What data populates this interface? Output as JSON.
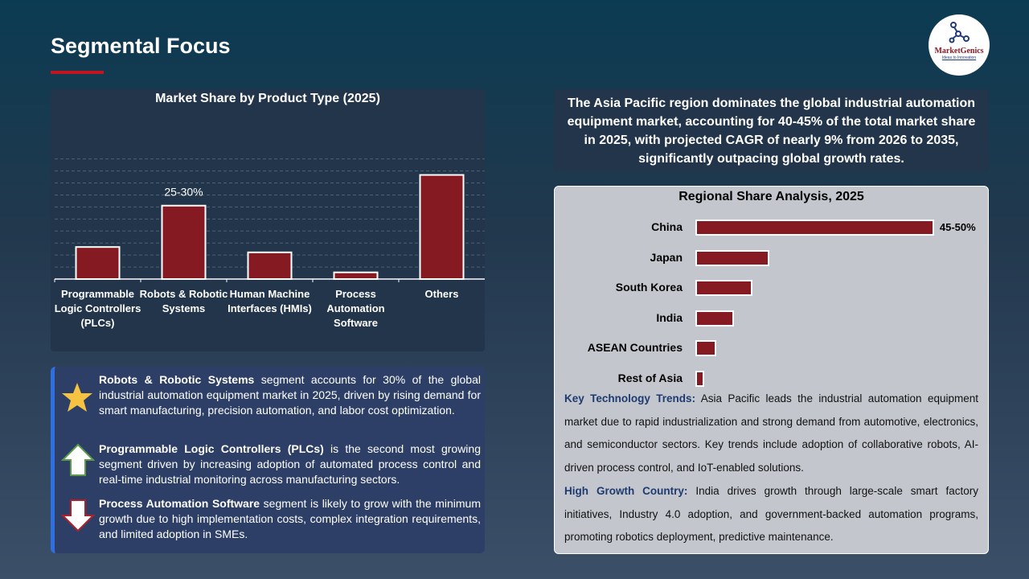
{
  "header": {
    "title": "Segmental Focus",
    "logo": {
      "name": "MarketGenics",
      "tagline": "Ideas to Innovation",
      "icon": "molecule-icon"
    }
  },
  "colors": {
    "bar": "#861a22",
    "accent": "#c3151f"
  },
  "chart_data": [
    {
      "type": "bar",
      "title": "Market Share by Product Type (2025)",
      "categories": [
        "Programmable Logic Controllers (PLCs)",
        "Robots & Robotic Systems",
        "Human Machine Interfaces (HMIs)",
        "Process Automation Software",
        "Others"
      ],
      "values": [
        12,
        27.5,
        10,
        2.5,
        39
      ],
      "data_labels": [
        "",
        "25-30%",
        "",
        "",
        ""
      ],
      "ylim": [
        0,
        47
      ],
      "grid": true,
      "unit": "%"
    },
    {
      "type": "bar",
      "orientation": "horizontal",
      "title": "Regional Share Analysis, 2025",
      "categories": [
        "China",
        "Japan",
        "South Korea",
        "India",
        "ASEAN Countries",
        "Rest of Asia"
      ],
      "values": [
        47.5,
        14.7,
        11.4,
        7.7,
        4.2,
        1.8
      ],
      "data_labels": [
        "45-50%",
        "",
        "",
        "",
        "",
        ""
      ],
      "unit": "%"
    }
  ],
  "xlabels": [
    [
      "Programmable",
      "Logic Controllers",
      "(PLCs)"
    ],
    [
      "Robots & Robotic",
      "Systems"
    ],
    [
      "Human Machine",
      "Interfaces (HMIs)"
    ],
    [
      "Process",
      "Automation",
      "Software"
    ],
    [
      "Others"
    ]
  ],
  "summary": "The Asia Pacific region dominates the global industrial automation equipment market, accounting for 40-45% of the total market share in 2025, with projected CAGR of nearly 9% from 2026 to 2035, significantly outpacing global growth rates.",
  "trends": {
    "label": "Key Technology Trends:",
    "text": " Asia Pacific leads the industrial automation equipment market due to rapid industrialization and strong demand from automotive, electronics, and semiconductor sectors. Key trends include adoption of collaborative robots, AI-driven process control, and IoT-enabled solutions."
  },
  "growth": {
    "label": "High Growth Country:",
    "text": " India drives growth through large-scale smart factory initiatives, Industry 4.0 adoption, and government-backed automation programs, promoting robotics deployment, predictive maintenance."
  },
  "insights": [
    {
      "icon": "star-icon",
      "bold": "Robots & Robotic Systems",
      "text": " segment accounts for 30% of the global industrial automation equipment market in 2025, driven by rising demand for smart manufacturing, precision automation, and labor cost optimization."
    },
    {
      "icon": "arrow-up-icon",
      "bold": "Programmable Logic Controllers (PLCs)",
      "text": " is the second most growing segment driven by increasing adoption of automated process control and real-time industrial monitoring across manufacturing sectors."
    },
    {
      "icon": "arrow-down-icon",
      "bold": "Process Automation Software",
      "text": " segment is likely to grow with the minimum growth due to high implementation costs, complex integration requirements, and limited adoption in SMEs."
    }
  ]
}
